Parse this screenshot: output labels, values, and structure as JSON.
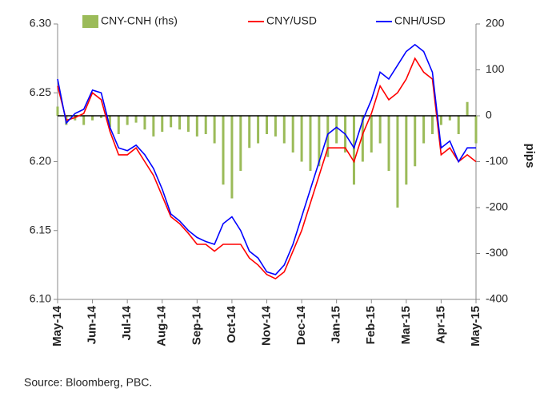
{
  "chart_data": {
    "type": "bar-line",
    "categories": [
      "May-14",
      null,
      null,
      null,
      "Jun-14",
      null,
      null,
      null,
      "Jul-14",
      null,
      null,
      null,
      "Aug-14",
      null,
      null,
      null,
      "Sep-14",
      null,
      null,
      null,
      "Oct-14",
      null,
      null,
      null,
      "Nov-14",
      null,
      null,
      null,
      "Dec-14",
      null,
      null,
      null,
      "Jan-15",
      null,
      null,
      null,
      "Feb-15",
      null,
      null,
      null,
      "Mar-15",
      null,
      null,
      null,
      "Apr-15",
      null,
      null,
      null,
      "May-15"
    ],
    "series": [
      {
        "name": "CNY-CNH (rhs)",
        "type": "bar",
        "axis": "y2",
        "color": "#9bbb59",
        "values": [
          20,
          -20,
          -10,
          -20,
          -10,
          -5,
          -25,
          -40,
          -20,
          -15,
          -30,
          -45,
          -35,
          -25,
          -30,
          -35,
          -45,
          -40,
          -60,
          -150,
          -180,
          -120,
          -70,
          -60,
          -40,
          -45,
          -60,
          -80,
          -100,
          -120,
          -110,
          -90,
          -60,
          -80,
          -150,
          -100,
          -80,
          -60,
          -120,
          -200,
          -150,
          -110,
          -60,
          -40,
          -20,
          -10,
          -40,
          30,
          -60
        ]
      },
      {
        "name": "CNY/USD",
        "type": "line",
        "color": "#ff0000",
        "values": [
          6.255,
          6.23,
          6.232,
          6.235,
          6.25,
          6.245,
          6.222,
          6.205,
          6.205,
          6.21,
          6.2,
          6.19,
          6.175,
          6.16,
          6.155,
          6.148,
          6.14,
          6.14,
          6.135,
          6.14,
          6.14,
          6.14,
          6.13,
          6.125,
          6.118,
          6.115,
          6.12,
          6.135,
          6.15,
          6.17,
          6.19,
          6.21,
          6.21,
          6.21,
          6.2,
          6.22,
          6.235,
          6.255,
          6.245,
          6.25,
          6.26,
          6.275,
          6.265,
          6.26,
          6.205,
          6.21,
          6.2,
          6.205,
          6.2
        ]
      },
      {
        "name": "CNH/USD",
        "type": "line",
        "color": "#0000ff",
        "values": [
          6.26,
          6.228,
          6.235,
          6.238,
          6.252,
          6.25,
          6.225,
          6.21,
          6.208,
          6.212,
          6.205,
          6.195,
          6.18,
          6.162,
          6.157,
          6.15,
          6.145,
          6.142,
          6.14,
          6.155,
          6.16,
          6.15,
          6.135,
          6.13,
          6.12,
          6.118,
          6.125,
          6.14,
          6.16,
          6.18,
          6.2,
          6.22,
          6.225,
          6.22,
          6.21,
          6.23,
          6.245,
          6.265,
          6.26,
          6.27,
          6.28,
          6.285,
          6.28,
          6.265,
          6.21,
          6.215,
          6.2,
          6.21,
          6.21
        ]
      }
    ],
    "ylim": [
      6.1,
      6.3
    ],
    "yticks": [
      {
        "value": 6.1,
        "label": "6.10"
      },
      6.15,
      {
        "value": 6.2,
        "label": "6.20"
      },
      6.25,
      {
        "value": 6.3,
        "label": "6.30"
      }
    ],
    "y2lim": [
      -400,
      200
    ],
    "y2ticks": [
      -400,
      -300,
      -200,
      -100,
      0,
      100,
      200
    ],
    "y2label": "pips",
    "source": "Source: Bloomberg, PBC."
  }
}
